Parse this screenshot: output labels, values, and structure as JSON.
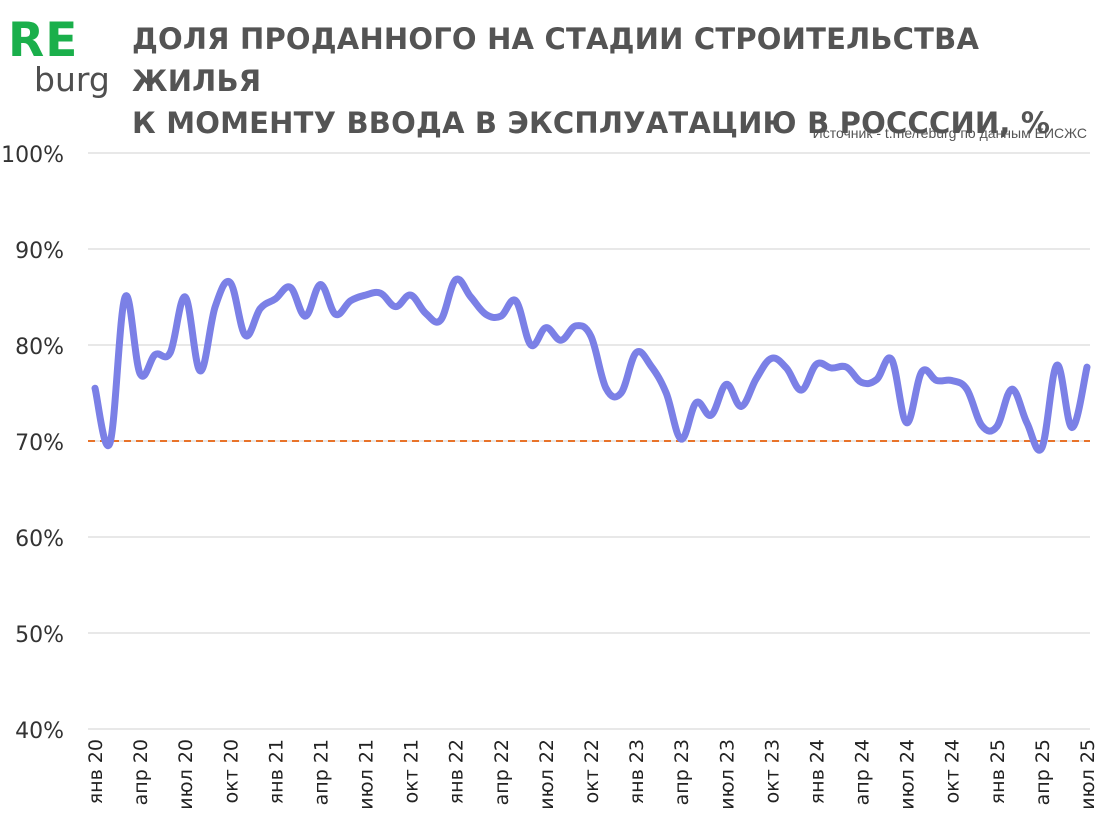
{
  "logo": {
    "part1": "RE",
    "part2": "burg",
    "color_primary": "#1aaf4b",
    "color_secondary": "#4f4f4f"
  },
  "title_line1": "ДОЛЯ ПРОДАННОГО НА СТАДИИ СТРОИТЕЛЬСТВА ЖИЛЬЯ",
  "title_line2": "К МОМЕНТУ ВВОДА В ЭКСПЛУАТАЦИЮ В РОСССИИ, %",
  "source": "Источник - t.me/reburg по данным ЕИСЖС",
  "chart_data": {
    "type": "line",
    "title": "ДОЛЯ ПРОДАННОГО НА СТАДИИ СТРОИТЕЛЬСТВА ЖИЛЬЯ К МОМЕНТУ ВВОДА В ЭКСПЛУАТАЦИЮ В РОСССИИ, %",
    "xlabel": "",
    "ylabel": "",
    "ylim": [
      40,
      100
    ],
    "yticks": [
      "40%",
      "50%",
      "60%",
      "70%",
      "80%",
      "90%",
      "100%"
    ],
    "ytick_values": [
      40,
      50,
      60,
      70,
      80,
      90,
      100
    ],
    "xticks": [
      {
        "index": 0,
        "label": "янв 20"
      },
      {
        "index": 3,
        "label": "апр 20"
      },
      {
        "index": 6,
        "label": "июл 20"
      },
      {
        "index": 9,
        "label": "окт 20"
      },
      {
        "index": 12,
        "label": "янв 21"
      },
      {
        "index": 15,
        "label": "апр 21"
      },
      {
        "index": 18,
        "label": "июл 21"
      },
      {
        "index": 21,
        "label": "окт 21"
      },
      {
        "index": 24,
        "label": "янв 22"
      },
      {
        "index": 27,
        "label": "апр 22"
      },
      {
        "index": 30,
        "label": "июл 22"
      },
      {
        "index": 33,
        "label": "окт 22"
      },
      {
        "index": 36,
        "label": "янв 23"
      },
      {
        "index": 39,
        "label": "апр 23"
      },
      {
        "index": 42,
        "label": "июл 23"
      },
      {
        "index": 45,
        "label": "окт 23"
      },
      {
        "index": 48,
        "label": "янв 24"
      },
      {
        "index": 51,
        "label": "апр 24"
      },
      {
        "index": 54,
        "label": "июл 24"
      },
      {
        "index": 57,
        "label": "окт 24"
      },
      {
        "index": 60,
        "label": "янв 25"
      },
      {
        "index": 63,
        "label": "апр 25"
      },
      {
        "index": 66,
        "label": "июл 25"
      }
    ],
    "grid": true,
    "reference_line": {
      "value": 70,
      "color": "#e8732a",
      "style": "dashed"
    },
    "series": [
      {
        "name": "Доля проданного",
        "color": "#7b80e6",
        "values": [
          75.5,
          69.8,
          85.0,
          77.0,
          79.0,
          79.2,
          85.0,
          77.3,
          84.0,
          86.5,
          81.0,
          83.8,
          84.8,
          86.0,
          83.0,
          86.3,
          83.2,
          84.6,
          85.2,
          85.4,
          84.0,
          85.2,
          83.3,
          82.6,
          86.8,
          85.0,
          83.2,
          83.0,
          84.6,
          80.0,
          81.8,
          80.5,
          82.0,
          80.9,
          75.5,
          75.0,
          79.2,
          77.8,
          75.0,
          70.2,
          74.0,
          72.7,
          75.9,
          73.6,
          76.5,
          78.6,
          77.6,
          75.3,
          78.0,
          77.6,
          77.7,
          76.1,
          76.4,
          78.5,
          71.9,
          77.2,
          76.3,
          76.3,
          75.4,
          71.6,
          71.5,
          75.4,
          71.9,
          69.3,
          77.9,
          71.4,
          77.7
        ]
      }
    ]
  }
}
